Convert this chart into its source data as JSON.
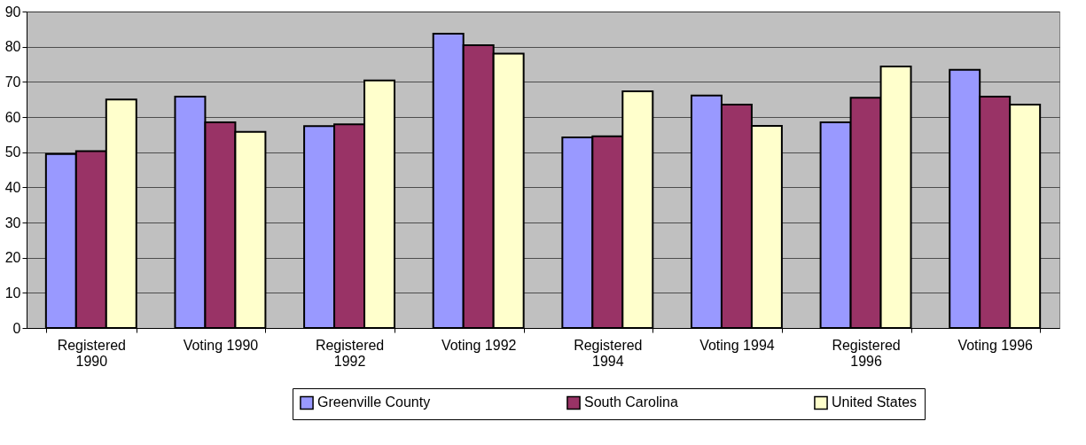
{
  "chart_data": {
    "type": "bar",
    "categories": [
      "Registered 1990",
      "Voting 1990",
      "Registered 1992",
      "Voting 1992",
      "Registered 1994",
      "Voting 1994",
      "Registered 1996",
      "Voting 1996"
    ],
    "series": [
      {
        "name": "Greenville County",
        "color": "#9999ff",
        "values": [
          49.5,
          65.8,
          57.4,
          83.7,
          54.2,
          66.1,
          58.5,
          73.4
        ]
      },
      {
        "name": "South Carolina",
        "color": "#993366",
        "values": [
          50.3,
          58.5,
          57.9,
          80.4,
          54.5,
          63.5,
          65.5,
          65.8
        ]
      },
      {
        "name": "United States",
        "color": "#ffffcc",
        "values": [
          65.0,
          55.8,
          70.4,
          78.0,
          67.3,
          57.5,
          74.4,
          63.5
        ]
      }
    ],
    "ylim": [
      0,
      90
    ],
    "yticks": [
      0,
      10,
      20,
      30,
      40,
      50,
      60,
      70,
      80,
      90
    ],
    "grid": "y",
    "legend": "bottom right"
  }
}
